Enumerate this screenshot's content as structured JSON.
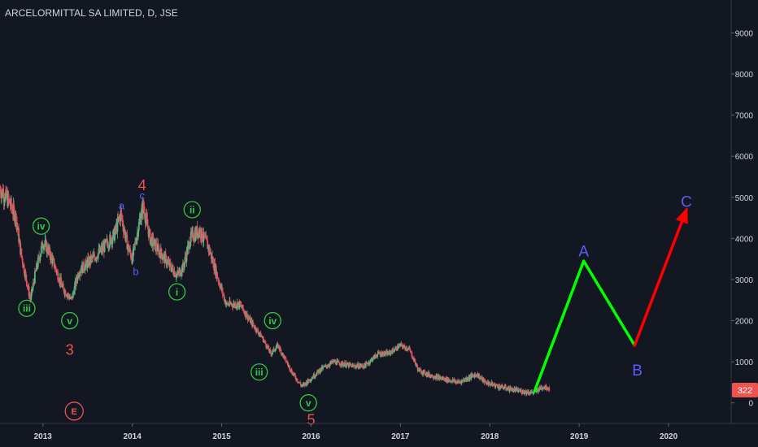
{
  "title": "ARCELORMITTAL SA LIMITED, D, JSE",
  "last_price": "322",
  "colors": {
    "background": "#131722",
    "bull_candle": "#53b987",
    "bear_candle": "#eb4d5c",
    "wave_green": "#00ff00",
    "wave_red": "#ff0000",
    "label_green": "#2ecc40",
    "label_red": "#ef5350",
    "label_blue": "#5b5bff",
    "axis_text": "#d1d4dc",
    "price_tag": "#ef5350"
  },
  "chart_data": {
    "type": "line",
    "title": "ARCELORMITTAL SA LIMITED, D, JSE",
    "x_ticks": [
      "2013",
      "2014",
      "2015",
      "2016",
      "2017",
      "2018",
      "2019",
      "2020"
    ],
    "y_ticks": [
      0,
      1000,
      2000,
      3000,
      4000,
      5000,
      6000,
      7000,
      8000,
      9000
    ],
    "ylim": [
      -500,
      9800
    ],
    "xlim": [
      2012.52,
      2020.7
    ],
    "grid": false,
    "price_series": {
      "name": "",
      "x": [
        2012.52,
        2012.62,
        2012.7,
        2012.75,
        2012.86,
        2012.92,
        2013.0,
        2013.04,
        2013.12,
        2013.22,
        2013.32,
        2013.4,
        2013.5,
        2013.65,
        2013.8,
        2013.87,
        2013.95,
        2014.0,
        2014.07,
        2014.12,
        2014.2,
        2014.3,
        2014.4,
        2014.5,
        2014.57,
        2014.65,
        2014.75,
        2014.85,
        2014.95,
        2015.05,
        2015.2,
        2015.35,
        2015.45,
        2015.55,
        2015.63,
        2015.7,
        2015.8,
        2015.9,
        2016.0,
        2016.1,
        2016.25,
        2016.45,
        2016.6,
        2016.75,
        2016.87,
        2017.0,
        2017.1,
        2017.2,
        2017.3,
        2017.45,
        2017.65,
        2017.85,
        2017.95,
        2018.1,
        2018.3,
        2018.48,
        2018.6,
        2018.67
      ],
      "values": [
        5200,
        4900,
        4500,
        3700,
        2500,
        3200,
        3900,
        3800,
        3400,
        2800,
        2500,
        3200,
        3400,
        3700,
        4100,
        4600,
        3800,
        3500,
        4300,
        4800,
        4000,
        3700,
        3400,
        3100,
        3300,
        4000,
        4200,
        3800,
        3100,
        2400,
        2400,
        1900,
        1600,
        1200,
        1400,
        1100,
        700,
        400,
        600,
        800,
        1000,
        900,
        900,
        1200,
        1200,
        1400,
        1300,
        800,
        700,
        600,
        500,
        700,
        500,
        400,
        300,
        250,
        400,
        350
      ]
    },
    "projection": {
      "up_A": {
        "x": [
          2018.5,
          2019.05
        ],
        "y": [
          280,
          3450
        ]
      },
      "down_B": {
        "x": [
          2019.05,
          2019.62
        ],
        "y": [
          3450,
          1400
        ]
      },
      "up_C": {
        "x": [
          2019.62,
          2020.2
        ],
        "y": [
          1400,
          4700
        ]
      }
    },
    "wave_labels": [
      {
        "text": "iii",
        "x": 2012.82,
        "y": 2300,
        "style": "circle-green"
      },
      {
        "text": "iv",
        "x": 2012.98,
        "y": 4300,
        "style": "circle-green"
      },
      {
        "text": "v",
        "x": 2013.3,
        "y": 2000,
        "style": "circle-green"
      },
      {
        "text": "3",
        "x": 2013.3,
        "y": 1300,
        "style": "red"
      },
      {
        "text": "E",
        "x": 2013.35,
        "y": -200,
        "style": "circle-red"
      },
      {
        "text": "a",
        "x": 2013.88,
        "y": 4800,
        "style": "blue"
      },
      {
        "text": "b",
        "x": 2014.04,
        "y": 3200,
        "style": "blue"
      },
      {
        "text": "c",
        "x": 2014.11,
        "y": 5050,
        "style": "blue"
      },
      {
        "text": "4",
        "x": 2014.11,
        "y": 5300,
        "style": "red"
      },
      {
        "text": "ii",
        "x": 2014.67,
        "y": 4700,
        "style": "circle-green"
      },
      {
        "text": "i",
        "x": 2014.5,
        "y": 2700,
        "style": "circle-green"
      },
      {
        "text": "iv",
        "x": 2015.57,
        "y": 2000,
        "style": "circle-green"
      },
      {
        "text": "iii",
        "x": 2015.42,
        "y": 750,
        "style": "circle-green"
      },
      {
        "text": "v",
        "x": 2015.97,
        "y": 0,
        "style": "circle-green"
      },
      {
        "text": "5",
        "x": 2016.0,
        "y": -400,
        "style": "red"
      },
      {
        "text": "A",
        "x": 2019.05,
        "y": 3700,
        "style": "blue-large"
      },
      {
        "text": "B",
        "x": 2019.65,
        "y": 800,
        "style": "blue-large"
      },
      {
        "text": "C",
        "x": 2020.2,
        "y": 4900,
        "style": "blue-large"
      }
    ]
  }
}
